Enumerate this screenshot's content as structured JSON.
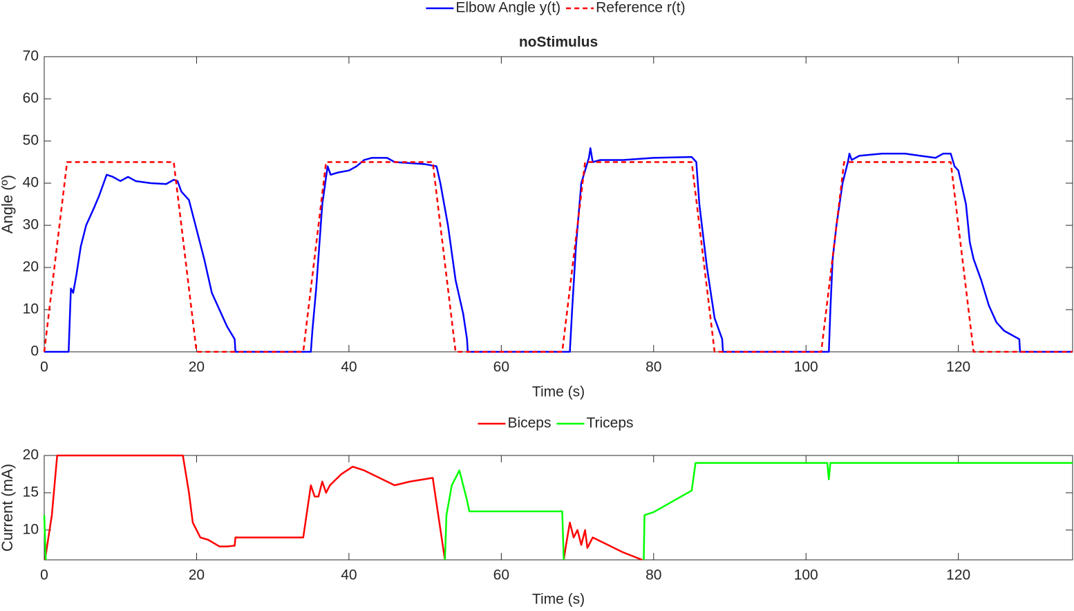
{
  "chart_data": [
    {
      "type": "line",
      "title": "noStimulus",
      "x_label": "Time (s)",
      "y_label": "Angle (º)",
      "xlim": [
        0,
        135
      ],
      "xticks": [
        0,
        20,
        40,
        60,
        80,
        100,
        120
      ],
      "ylim": [
        0,
        70
      ],
      "yticks": [
        0,
        10,
        20,
        30,
        40,
        50,
        60,
        70
      ],
      "legend": "top",
      "series": [
        {
          "name": "Elbow Angle y(t)",
          "color": "#0000ff",
          "linestyle": "solid",
          "x": [
            0,
            3.2,
            3.5,
            3.8,
            4.2,
            4.8,
            5.5,
            6.5,
            7.2,
            7.8,
            8.2,
            9,
            10,
            11,
            12,
            14,
            16,
            17,
            17.5,
            18,
            19,
            20,
            21,
            22,
            23,
            24,
            25,
            25.1,
            35,
            35.2,
            35.7,
            36.5,
            37.2,
            37.6,
            38.5,
            40,
            41,
            42,
            43,
            45,
            46,
            50,
            51.5,
            52,
            53,
            54,
            55,
            55.5,
            55.6,
            69,
            69.3,
            69.8,
            70.5,
            71.5,
            71.7,
            72,
            73,
            76,
            80,
            85,
            85.6,
            86,
            87,
            88,
            89,
            89.1,
            103,
            103.2,
            103.5,
            104,
            104.8,
            105.5,
            105.7,
            106,
            107,
            110,
            113,
            115,
            117,
            118,
            119,
            119.5,
            120,
            121,
            121.5,
            122,
            123,
            124,
            125,
            126,
            127,
            128,
            128.1,
            135
          ],
          "values": [
            0,
            0,
            15,
            14,
            18,
            25,
            30,
            34,
            37,
            40,
            42,
            41.5,
            40.5,
            41.5,
            40.5,
            40,
            39.8,
            40.8,
            40.5,
            38,
            36,
            29,
            22,
            14,
            10,
            6,
            3,
            0,
            0,
            5,
            15,
            35,
            44,
            42,
            42.5,
            43,
            44,
            45.5,
            46,
            46,
            45,
            44.5,
            44,
            40,
            30,
            17,
            9,
            3,
            0,
            0,
            10,
            25,
            40,
            46,
            48.3,
            45,
            45.5,
            45.5,
            46,
            46.2,
            45,
            35,
            20,
            8,
            3,
            0,
            0,
            10,
            22,
            30,
            40,
            45,
            47,
            45.5,
            46.5,
            47,
            47,
            46.5,
            46,
            47,
            47,
            44,
            43,
            35,
            26,
            22,
            17,
            11,
            7,
            5,
            4,
            3,
            0,
            0
          ]
        },
        {
          "name": "Reference r(t)",
          "color": "#ff0000",
          "linestyle": "dashed",
          "x": [
            0,
            3,
            17,
            20,
            34,
            37,
            51,
            54,
            68,
            71,
            85,
            88,
            102,
            105,
            119,
            122,
            135
          ],
          "values": [
            0,
            45,
            45,
            0,
            0,
            45,
            45,
            0,
            0,
            45,
            45,
            0,
            0,
            45,
            45,
            0,
            0
          ]
        }
      ]
    },
    {
      "type": "line",
      "x_label": "Time (s)",
      "y_label": "Current (mA)",
      "xlim": [
        0,
        135
      ],
      "xticks": [
        0,
        20,
        40,
        60,
        80,
        100,
        120
      ],
      "ylim": [
        6,
        20
      ],
      "yticks": [
        10,
        15,
        20
      ],
      "legend": "top",
      "series": [
        {
          "name": "Biceps",
          "color": "#ff0000",
          "linestyle": "solid",
          "x": [
            0.1,
            1,
            1.7,
            18.2,
            19,
            19.5,
            20.5,
            21.5,
            23,
            24,
            25,
            25.1,
            34,
            35,
            35.5,
            36,
            36.5,
            37,
            37.5,
            39,
            40.5,
            42,
            44,
            46,
            48,
            51,
            52.6,
            null,
            68.2,
            68.5,
            69,
            69.5,
            70,
            70.5,
            71,
            71.3,
            72,
            74,
            76,
            78.5
          ],
          "values": [
            6,
            12,
            20,
            20,
            15,
            11,
            9,
            8.7,
            7.8,
            7.8,
            7.9,
            9,
            9,
            16,
            14.5,
            14.5,
            16.5,
            15,
            16,
            17.5,
            18.5,
            18,
            17,
            16,
            16.5,
            17,
            6,
            null,
            6,
            8,
            11,
            9,
            10,
            8,
            10,
            7.6,
            9,
            8,
            7,
            6
          ]
        },
        {
          "name": "Triceps",
          "color": "#00ff00",
          "linestyle": "solid",
          "x": [
            0,
            0.2,
            null,
            52.6,
            52.8,
            53.5,
            54.5,
            55,
            55.5,
            55.8,
            68,
            68.2,
            null,
            78.7,
            78.8,
            80,
            85,
            85.5,
            102.8,
            103,
            103.2,
            135
          ],
          "values": [
            12,
            6,
            null,
            6,
            12,
            16,
            18,
            16,
            14,
            12.5,
            12.5,
            6,
            null,
            6,
            12,
            12.4,
            15.3,
            19,
            19,
            16.8,
            19,
            19
          ]
        }
      ]
    }
  ]
}
